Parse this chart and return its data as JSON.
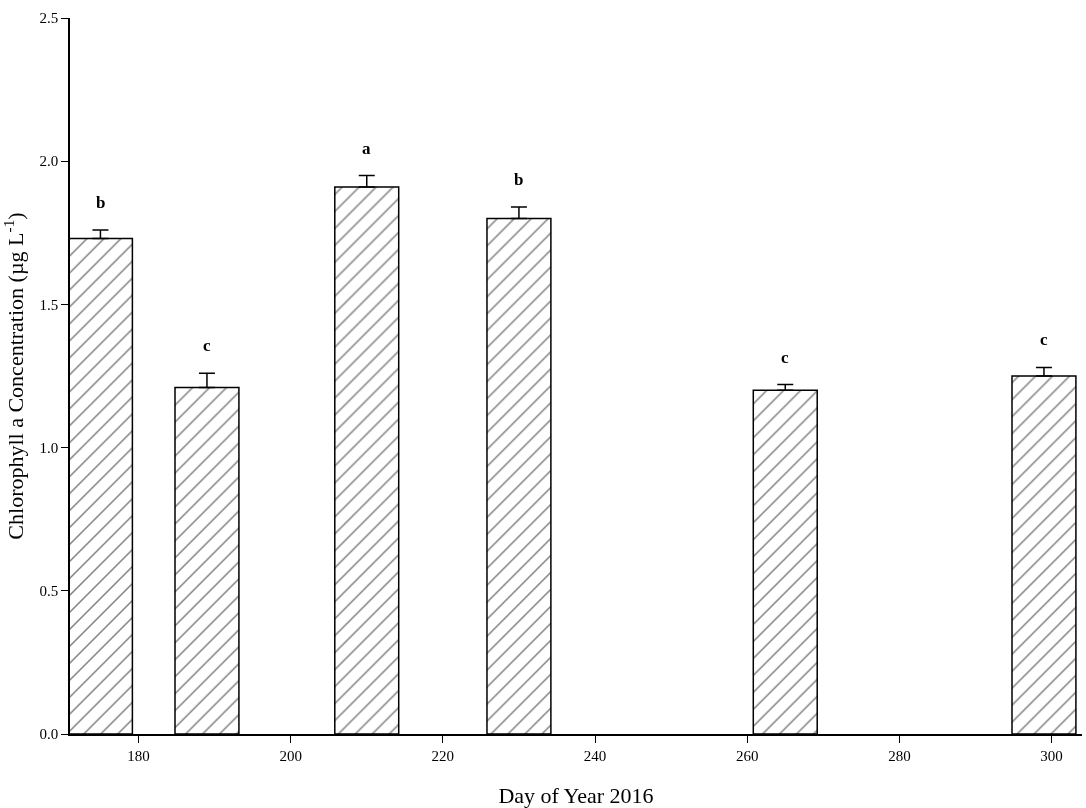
{
  "chart_data": {
    "type": "bar",
    "xlabel": "Day of Year 2016",
    "ylabel": "Chlorophyll a Concentration (µg L$^{-1}$)",
    "x": [
      175,
      189,
      210,
      230,
      265,
      299
    ],
    "values": [
      1.73,
      1.21,
      1.91,
      1.8,
      1.2,
      1.25
    ],
    "errors": [
      [
        1.73,
        1.76
      ],
      [
        1.21,
        1.26
      ],
      [
        1.91,
        1.95
      ],
      [
        1.8,
        1.84
      ],
      [
        1.2,
        1.22
      ],
      [
        1.25,
        1.28
      ]
    ],
    "color": "#000000",
    "xlim": [
      171,
      304
    ],
    "xticks": [
      180,
      200,
      220,
      240,
      260,
      280,
      300
    ],
    "ylim": [
      0,
      2.5
    ],
    "yticks": [
      {
        "value": 0,
        "label": "0.0"
      },
      {
        "value": 0.5,
        "label": "0.5"
      },
      {
        "value": 1,
        "label": "1.0"
      },
      {
        "value": 1.5,
        "label": "1.5"
      },
      {
        "value": 2,
        "label": "2.0"
      },
      {
        "value": 2.5,
        "label": "2.5"
      }
    ],
    "annotations": [
      {
        "text": "b",
        "x": 175,
        "y": 1.76
      },
      {
        "text": "c",
        "x": 189,
        "y": 1.26
      },
      {
        "text": "a",
        "x": 210,
        "y": 1.95
      },
      {
        "text": "b",
        "x": 230,
        "y": 1.84
      },
      {
        "text": "c",
        "x": 265,
        "y": 1.22
      },
      {
        "text": "c",
        "x": 299,
        "y": 1.28
      }
    ]
  }
}
